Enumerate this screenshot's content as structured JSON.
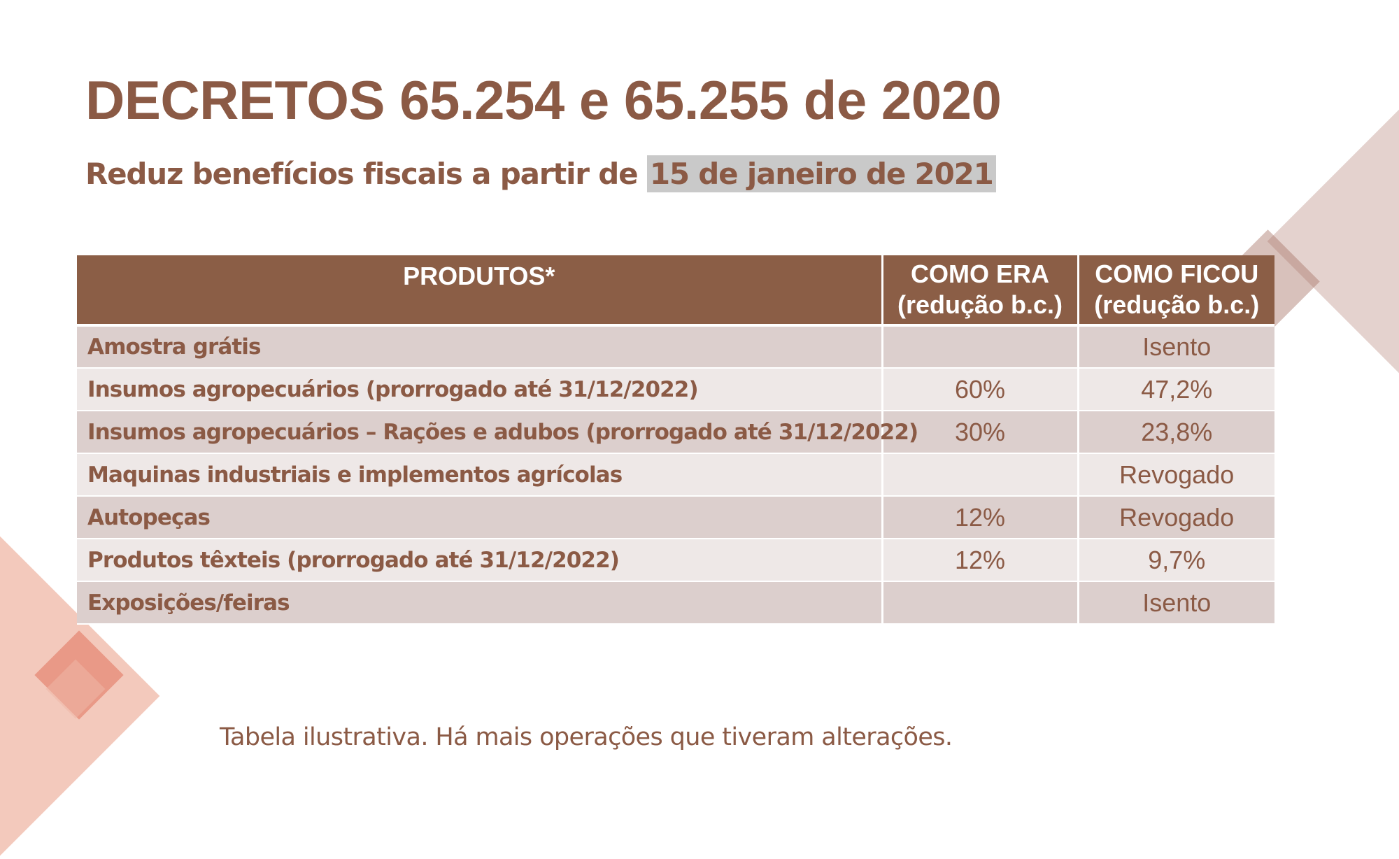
{
  "slide": {
    "title": "DECRETOS 65.254 e 65.255 de 2020",
    "subtitle_prefix": "Reduz benefícios fiscais a partir de ",
    "subtitle_date": "15 de janeiro de 2021",
    "footnote": "Tabela ilustrativa. Há mais operações que tiveram alterações.",
    "colors": {
      "brand_brown": "#8b5a45",
      "header_bg": "#8b5e46",
      "row_dark": "#dccfcd",
      "row_light": "#eee8e7",
      "highlight": "#c9c9c9"
    }
  },
  "table": {
    "headers": [
      {
        "line1": "PRODUTOS*",
        "line2": ""
      },
      {
        "line1": "COMO ERA",
        "line2": "(redução b.c.)"
      },
      {
        "line1": "COMO FICOU",
        "line2": "(redução b.c.)"
      }
    ],
    "rows": [
      {
        "produto": "Amostra grátis",
        "como_era": "",
        "como_ficou": "Isento"
      },
      {
        "produto": "Insumos agropecuários (prorrogado até 31/12/2022)",
        "como_era": "60%",
        "como_ficou": "47,2%"
      },
      {
        "produto": "Insumos agropecuários – Rações e adubos (prorrogado até 31/12/2022)",
        "como_era": "30%",
        "como_ficou": "23,8%"
      },
      {
        "produto": "Maquinas industriais e implementos agrícolas",
        "como_era": "",
        "como_ficou": "Revogado"
      },
      {
        "produto": "Autopeças",
        "como_era": "12%",
        "como_ficou": "Revogado"
      },
      {
        "produto": "Produtos têxteis (prorrogado até 31/12/2022)",
        "como_era": "12%",
        "como_ficou": "9,7%"
      },
      {
        "produto": "Exposições/feiras",
        "como_era": "",
        "como_ficou": "Isento"
      }
    ]
  }
}
